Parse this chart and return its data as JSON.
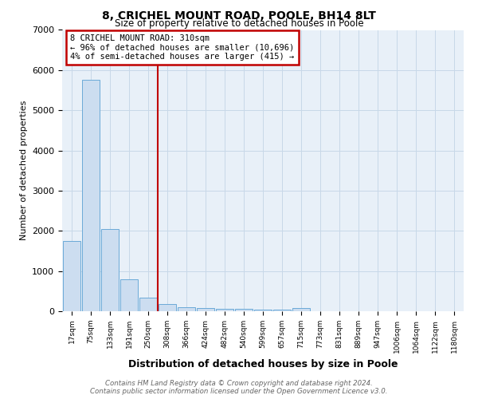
{
  "title1": "8, CRICHEL MOUNT ROAD, POOLE, BH14 8LT",
  "title2": "Size of property relative to detached houses in Poole",
  "xlabel": "Distribution of detached houses by size in Poole",
  "ylabel": "Number of detached properties",
  "bar_labels": [
    "17sqm",
    "75sqm",
    "133sqm",
    "191sqm",
    "250sqm",
    "308sqm",
    "366sqm",
    "424sqm",
    "482sqm",
    "540sqm",
    "599sqm",
    "657sqm",
    "715sqm",
    "773sqm",
    "831sqm",
    "889sqm",
    "947sqm",
    "1006sqm",
    "1064sqm",
    "1122sqm",
    "1180sqm"
  ],
  "bar_values": [
    1750,
    5750,
    2050,
    800,
    340,
    185,
    105,
    80,
    65,
    50,
    40,
    35,
    75,
    5,
    5,
    5,
    5,
    5,
    5,
    5,
    5
  ],
  "bar_color": "#ccddf0",
  "bar_edge_color": "#6baad8",
  "vline_x": 4.5,
  "vline_color": "#c00000",
  "annotation_text": "8 CRICHEL MOUNT ROAD: 310sqm\n← 96% of detached houses are smaller (10,696)\n4% of semi-detached houses are larger (415) →",
  "annotation_box_color": "white",
  "annotation_box_edge_color": "#c00000",
  "ylim": [
    0,
    7000
  ],
  "grid_color": "#c8d8e8",
  "footnote": "Contains HM Land Registry data © Crown copyright and database right 2024.\nContains public sector information licensed under the Open Government Licence v3.0.",
  "background_color": "#e8f0f8"
}
